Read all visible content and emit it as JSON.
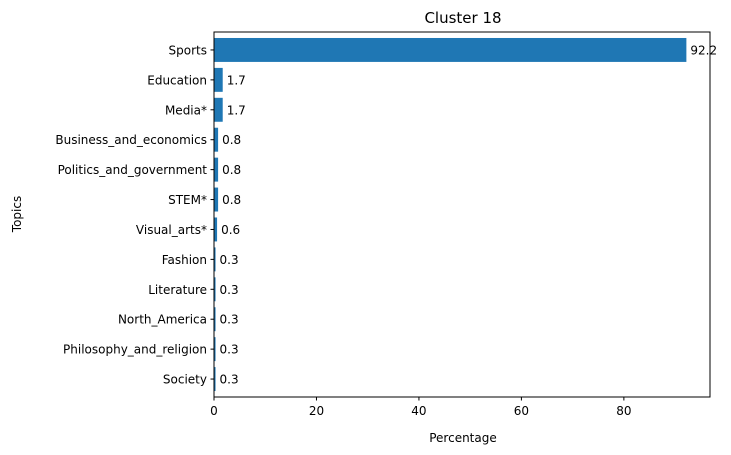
{
  "chart_data": {
    "type": "bar",
    "orientation": "horizontal",
    "title": "Cluster 18",
    "xlabel": "Percentage",
    "ylabel": "Topics",
    "categories": [
      "Sports",
      "Education",
      "Media*",
      "Business_and_economics",
      "Politics_and_government",
      "STEM*",
      "Visual_arts*",
      "Fashion",
      "Literature",
      "North_America",
      "Philosophy_and_religion",
      "Society"
    ],
    "values": [
      92.2,
      1.7,
      1.7,
      0.8,
      0.8,
      0.8,
      0.6,
      0.3,
      0.3,
      0.3,
      0.3,
      0.3
    ],
    "value_labels": [
      "92.2",
      "1.7",
      "1.7",
      "0.8",
      "0.8",
      "0.8",
      "0.6",
      "0.3",
      "0.3",
      "0.3",
      "0.3",
      "0.3"
    ],
    "xticks": [
      "0",
      "20",
      "40",
      "60",
      "80"
    ],
    "xlim": [
      0,
      96.81
    ],
    "grid": false,
    "bar_color": "#1f77b4"
  }
}
